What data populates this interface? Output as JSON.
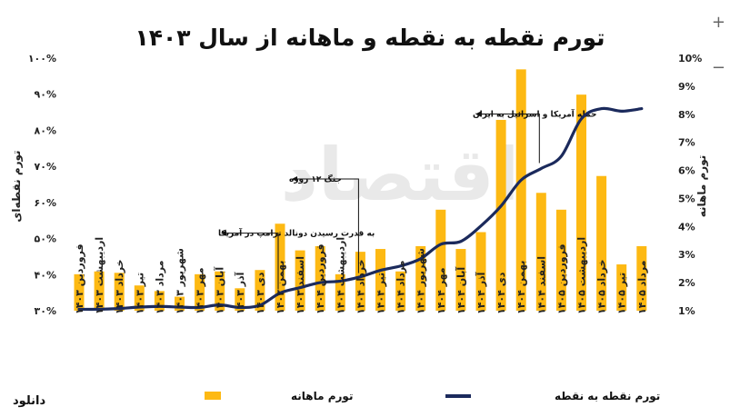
{
  "footer_text": "دانلود",
  "controls": {
    "zoom_in": "+",
    "zoom_out": "−"
  },
  "chart_data": {
    "type": "bar",
    "title": "تورم نقطه به نقطه و ماهانه از سال ۱۴۰۳",
    "categories": [
      "فروردین ۱۴۰۳",
      "اردیبهشت ۱۴۰۳",
      "خرداد ۱۴۰۳",
      "تیر ۱۴۰۳",
      "مرداد ۱۴۰۳",
      "شهریور ۱۴۰۳",
      "مهر ۱۴۰۳",
      "آبان ۱۴۰۳",
      "آذر ۱۴۰۳",
      "دی ۱۴۰۳",
      "بهمن ۱۴۰۳",
      "اسفند ۱۴۰۳",
      "فروردین ۱۴۰۴",
      "اردیبهشت ۱۴۰۴",
      "خرداد ۱۴۰۴",
      "تیر ۱۴۰۴",
      "مرداد ۱۴۰۴",
      "شهریور ۱۴۰۴",
      "مهر ۱۴۰۴",
      "آبان ۱۴۰۴",
      "آذر ۱۴۰۴",
      "دی ۱۴۰۴",
      "بهمن ۱۴۰۴",
      "اسفند ۱۴۰۴",
      "فروردین ۱۴۰۵",
      "اردیبهشت ۱۴۰۵",
      "خرداد ۱۴۰۵",
      "تیر ۱۴۰۵",
      "مرداد ۱۴۰۵"
    ],
    "series": [
      {
        "name": "تورم ماهانه",
        "type": "bar",
        "axis": "right",
        "color": "#FDB913",
        "values": [
          2.3,
          2.4,
          2.35,
          1.9,
          1.7,
          1.5,
          2.3,
          2.4,
          1.8,
          2.45,
          4.1,
          3.15,
          3.3,
          2.3,
          3.1,
          3.2,
          2.4,
          3.3,
          4.6,
          3.2,
          3.8,
          7.8,
          9.6,
          5.2,
          4.6,
          8.7,
          5.8,
          2.65,
          3.3
        ]
      },
      {
        "name": "تورم نقطه به نقطه",
        "type": "line",
        "axis": "left",
        "color": "#1B2A5C",
        "values": [
          30.4,
          30.4,
          30.6,
          31.0,
          31.2,
          31.0,
          30.9,
          31.6,
          30.9,
          31.5,
          34.9,
          36.4,
          37.8,
          38.2,
          39.4,
          41.2,
          42.4,
          44.4,
          48.4,
          49.2,
          53.5,
          59.0,
          66.2,
          69.4,
          72.8,
          83.2,
          86.0,
          85.3,
          86.0
        ]
      }
    ],
    "y_left": {
      "label": "تورم نقطه‌ای",
      "range": [
        30,
        100
      ],
      "ticks": [
        "۳۰%",
        "۴۰%",
        "۵۰%",
        "۶۰%",
        "۷۰%",
        "۸۰%",
        "۹۰%",
        "۱۰۰%"
      ]
    },
    "y_right": {
      "label": "تورم ماهانه",
      "range": [
        1,
        10
      ],
      "ticks": [
        "1%",
        "2%",
        "3%",
        "4%",
        "5%",
        "6%",
        "7%",
        "8%",
        "9%",
        "10%"
      ]
    },
    "annotations": [
      {
        "text": "به قدرت رسیدن دونالد ترامپ در آمریکا",
        "category_index": 10,
        "y": 51.5
      },
      {
        "text": "جنگ ۱۲ روزه",
        "category_index": 14,
        "y": 66.5
      },
      {
        "text": "حمله آمریکا و اسرائیل به ایران",
        "category_index": 23,
        "y": 84.5
      }
    ],
    "watermark": "اقتصاد",
    "legend_position": "bottom",
    "grid": false
  }
}
